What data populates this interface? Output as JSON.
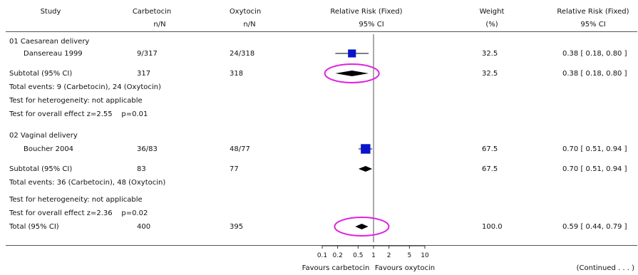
{
  "header": {
    "study": "Study",
    "group1": "Carbetocin",
    "group1_sub": "n/N",
    "group2": "Oxytocin",
    "group2_sub": "n/N",
    "effect": "Relative Risk (Fixed)",
    "effect_sub": "95% CI",
    "weight": "Weight",
    "weight_sub": "(%)",
    "rr": "Relative Risk (Fixed)",
    "rr_sub": "95% CI"
  },
  "subgroups": [
    {
      "title": "01 Caesarean delivery",
      "studies": [
        {
          "name": "Dansereau 1999",
          "g1": "9/317",
          "g2": "24/318",
          "weight": "32.5",
          "rr_text": "0.38 [ 0.18, 0.80 ]"
        }
      ],
      "subtotal": {
        "label": "Subtotal (95% CI)",
        "g1": "317",
        "g2": "318",
        "weight": "32.5",
        "rr_text": "0.38 [ 0.18, 0.80 ]"
      },
      "events": "Total events: 9 (Carbetocin), 24 (Oxytocin)",
      "heterogeneity": "Test for heterogeneity: not applicable",
      "overall": "Test for overall effect z=2.55    p=0.01"
    },
    {
      "title": "02 Vaginal delivery",
      "studies": [
        {
          "name": "Boucher 2004",
          "g1": "36/83",
          "g2": "48/77",
          "weight": "67.5",
          "rr_text": "0.70 [ 0.51, 0.94 ]"
        }
      ],
      "subtotal": {
        "label": "Subtotal (95% CI)",
        "g1": "83",
        "g2": "77",
        "weight": "67.5",
        "rr_text": "0.70 [ 0.51, 0.94 ]"
      },
      "events": "Total events: 36 (Carbetocin), 48 (Oxytocin)",
      "heterogeneity": "Test for heterogeneity: not applicable",
      "overall": "Test for overall effect z=2.36    p=0.02"
    }
  ],
  "total": {
    "label": "Total (95% CI)",
    "g1": "400",
    "g2": "395",
    "weight": "100.0",
    "rr_text": "0.59 [ 0.44, 0.79 ]"
  },
  "axis": {
    "ticks": [
      "0.1",
      "0.2",
      "0.5",
      "1",
      "2",
      "5",
      "10"
    ],
    "favours_left": "Favours carbetocin",
    "favours_right": "Favours oxytocin"
  },
  "footer": {
    "continued": "(Continued . . . )"
  },
  "chart_data": {
    "type": "forest",
    "scale": "log",
    "xlim": [
      0.1,
      10
    ],
    "tick_values": [
      0.1,
      0.2,
      0.5,
      1,
      2,
      5,
      10
    ],
    "reference_line": 1,
    "studies": [
      {
        "name": "Dansereau 1999",
        "rr": 0.38,
        "lo": 0.18,
        "hi": 0.8,
        "weight": 32.5
      },
      {
        "name": "Boucher 2004",
        "rr": 0.7,
        "lo": 0.51,
        "hi": 0.94,
        "weight": 67.5
      }
    ],
    "pooled": [
      {
        "name": "Subtotal 01 Caesarean delivery",
        "rr": 0.38,
        "lo": 0.18,
        "hi": 0.8,
        "highlighted": true
      },
      {
        "name": "Subtotal 02 Vaginal delivery",
        "rr": 0.7,
        "lo": 0.51,
        "hi": 0.94,
        "highlighted": false
      },
      {
        "name": "Total",
        "rr": 0.59,
        "lo": 0.44,
        "hi": 0.79,
        "highlighted": true
      }
    ],
    "colors": {
      "study_marker": "#0a14c8",
      "pooled_marker": "#000000",
      "highlight": "#e020e0",
      "reference": "#555555"
    }
  }
}
